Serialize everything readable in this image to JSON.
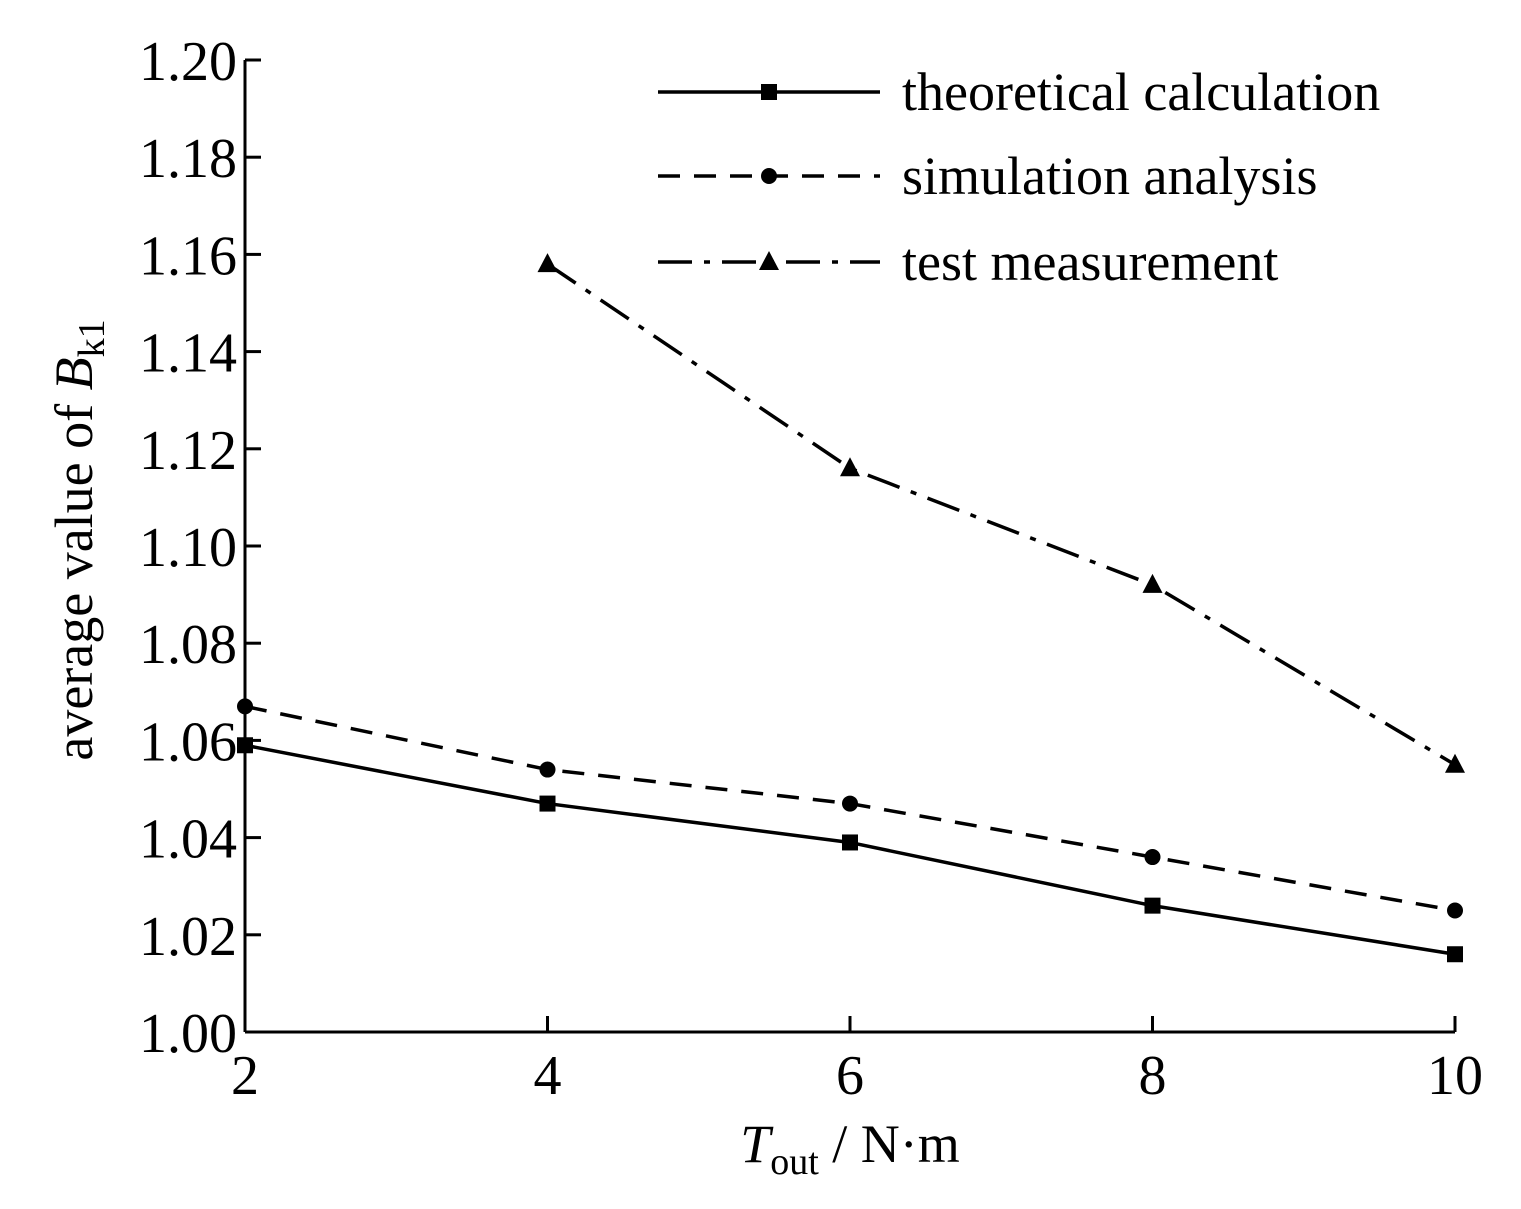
{
  "chart_data": {
    "type": "line",
    "title": "",
    "xlabel": {
      "main": "T",
      "subscript": "out",
      "unit": " / N·m"
    },
    "ylabel": {
      "main": "average value of ",
      "var": "B",
      "subscript": "k1"
    },
    "x": [
      2,
      4,
      6,
      8,
      10
    ],
    "x_tick_labels": [
      "2",
      "4",
      "6",
      "8",
      "10"
    ],
    "xlim": [
      2,
      10
    ],
    "y_tick_labels": [
      "1.00",
      "1.02",
      "1.04",
      "1.06",
      "1.08",
      "1.10",
      "1.12",
      "1.14",
      "1.16",
      "1.18",
      "1.20"
    ],
    "ylim": [
      1.0,
      1.2
    ],
    "grid": false,
    "legend_position": "top-right",
    "series": [
      {
        "name": "theoretical calculation",
        "line_style": "solid",
        "marker": "square",
        "x": [
          2,
          4,
          6,
          8,
          10
        ],
        "values": [
          1.059,
          1.047,
          1.039,
          1.026,
          1.016
        ]
      },
      {
        "name": "simulation analysis",
        "line_style": "dashed",
        "marker": "circle",
        "x": [
          2,
          4,
          6,
          8,
          10
        ],
        "values": [
          1.067,
          1.054,
          1.047,
          1.036,
          1.025
        ]
      },
      {
        "name": "test measurement",
        "line_style": "dash-dot",
        "marker": "triangle",
        "x": [
          4,
          6,
          8,
          10
        ],
        "values": [
          1.158,
          1.116,
          1.092,
          1.055
        ]
      }
    ],
    "colors": {
      "line": "#000000",
      "background": "#ffffff"
    }
  }
}
